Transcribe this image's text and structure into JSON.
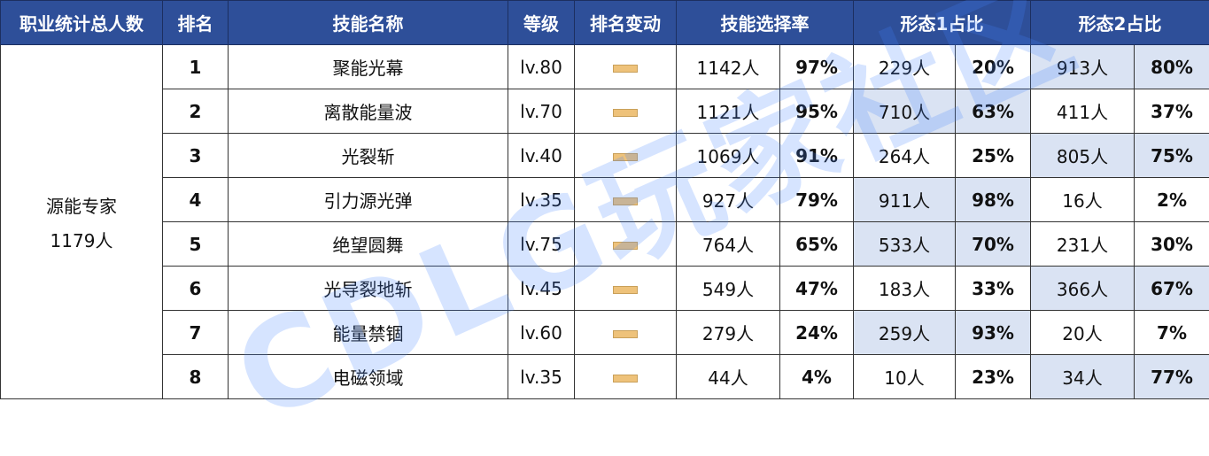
{
  "headers": [
    "职业统计总人数",
    "排名",
    "技能名称",
    "等级",
    "排名变动",
    "技能选择率",
    "形态1占比",
    "形态2占比"
  ],
  "class": {
    "name": "源能专家",
    "total": "1179人"
  },
  "rank_change_icon": "no-change-dash-icon",
  "highlight_color": "#dae3f3",
  "header_color": "#2e4f99",
  "watermark": "CDLG玩家社区",
  "rows": [
    {
      "rank": "1",
      "skill": "聚能光幕",
      "level": "lv.80",
      "count": "1142人",
      "rate": "97%",
      "f1n": "229人",
      "f1p": "20%",
      "f2n": "913人",
      "f2p": "80%",
      "hl": 2
    },
    {
      "rank": "2",
      "skill": "离散能量波",
      "level": "lv.70",
      "count": "1121人",
      "rate": "95%",
      "f1n": "710人",
      "f1p": "63%",
      "f2n": "411人",
      "f2p": "37%",
      "hl": 1
    },
    {
      "rank": "3",
      "skill": "光裂斩",
      "level": "lv.40",
      "count": "1069人",
      "rate": "91%",
      "f1n": "264人",
      "f1p": "25%",
      "f2n": "805人",
      "f2p": "75%",
      "hl": 2
    },
    {
      "rank": "4",
      "skill": "引力源光弹",
      "level": "lv.35",
      "count": "927人",
      "rate": "79%",
      "f1n": "911人",
      "f1p": "98%",
      "f2n": "16人",
      "f2p": "2%",
      "hl": 1
    },
    {
      "rank": "5",
      "skill": "绝望圆舞",
      "level": "lv.75",
      "count": "764人",
      "rate": "65%",
      "f1n": "533人",
      "f1p": "70%",
      "f2n": "231人",
      "f2p": "30%",
      "hl": 1
    },
    {
      "rank": "6",
      "skill": "光导裂地斩",
      "level": "lv.45",
      "count": "549人",
      "rate": "47%",
      "f1n": "183人",
      "f1p": "33%",
      "f2n": "366人",
      "f2p": "67%",
      "hl": 2
    },
    {
      "rank": "7",
      "skill": "能量禁锢",
      "level": "lv.60",
      "count": "279人",
      "rate": "24%",
      "f1n": "259人",
      "f1p": "93%",
      "f2n": "20人",
      "f2p": "7%",
      "hl": 1
    },
    {
      "rank": "8",
      "skill": "电磁领域",
      "level": "lv.35",
      "count": "44人",
      "rate": "4%",
      "f1n": "10人",
      "f1p": "23%",
      "f2n": "34人",
      "f2p": "77%",
      "hl": 2
    }
  ]
}
